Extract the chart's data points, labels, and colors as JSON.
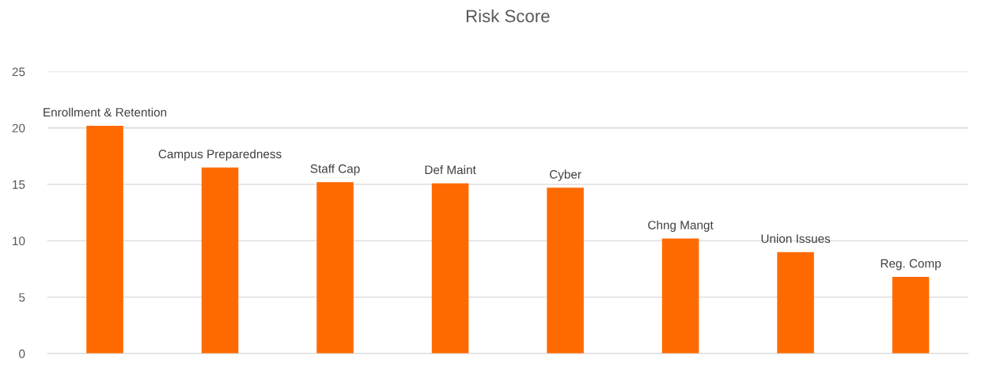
{
  "chart_data": {
    "type": "bar",
    "title": "Risk Score",
    "categories": [
      "Enrollment & Retention",
      "Campus Preparedness",
      "Staff Cap",
      "Def Maint",
      "Cyber",
      "Chng Mangt",
      "Union Issues",
      "Reg. Comp"
    ],
    "values": [
      20.2,
      16.5,
      15.2,
      15.1,
      14.7,
      10.2,
      9.0,
      6.8
    ],
    "color": "#ff6a00",
    "ylim": [
      0,
      25
    ],
    "yticks": [
      0,
      5,
      10,
      15,
      20,
      25
    ],
    "grid": "y"
  }
}
